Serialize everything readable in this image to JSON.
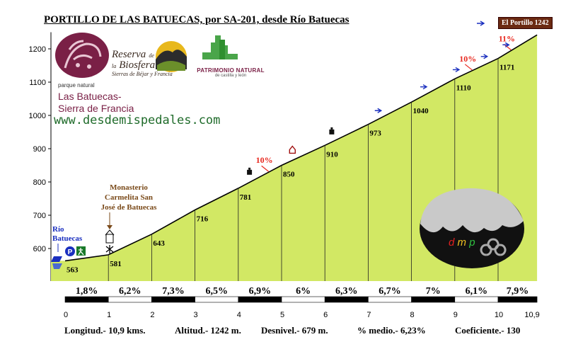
{
  "title": "PORTILLO DE LAS BATUECAS, por SA-201, desde Río Batuecas",
  "logos": {
    "park_small": "parque natural",
    "park_line1": "Las Batuecas-",
    "park_line2": "Sierra de Francia",
    "reserva_1": "Reserva",
    "reserva_de": "de",
    "reserva_la": "la",
    "reserva_2": "Biosfera",
    "reserva_sub": "Sierras de Béjar y Francia",
    "patrimonio_1": "PATRIMONIO NATURAL",
    "patrimonio_2": "de castilla y león",
    "website": "www.desdemispedales.com",
    "dmp_d": "d",
    "dmp_m": "m",
    "dmp_p": "p"
  },
  "annotations": {
    "start_place_1": "Río",
    "start_place_2": "Batuecas",
    "monastery_1": "Monasterio",
    "monastery_2": "Carmelita San",
    "monastery_3": "José de Batuecas",
    "summit_box": "El Portillo 1242"
  },
  "stats": {
    "length": "Longitud.- 10,9 kms.",
    "altitude": "Altitud.- 1242 m.",
    "climb": "Desnivel.- 679 m.",
    "avg": "% medio.- 6,23%",
    "coef": "Coeficiente.- 130"
  },
  "colors": {
    "fill": "#d2e864",
    "fill_shadow": "#a9c63a",
    "outline": "#000000",
    "peak_label": "#e8281e",
    "marker_arrow": "#1a2fbf"
  },
  "chart_data": {
    "type": "area",
    "xlabel": "",
    "ylabel": "",
    "xlim": [
      0,
      10.9
    ],
    "ylim": [
      500,
      1250
    ],
    "y_ticks": [
      600,
      700,
      800,
      900,
      1000,
      1100,
      1200
    ],
    "x_ticks": [
      "0",
      "1",
      "2",
      "3",
      "4",
      "5",
      "6",
      "7",
      "8",
      "9",
      "10",
      "10,9"
    ],
    "profile": [
      {
        "km": 0,
        "alt": 563
      },
      {
        "km": 1,
        "alt": 581
      },
      {
        "km": 2,
        "alt": 643
      },
      {
        "km": 3,
        "alt": 716
      },
      {
        "km": 4,
        "alt": 781
      },
      {
        "km": 5,
        "alt": 850
      },
      {
        "km": 6,
        "alt": 910
      },
      {
        "km": 7,
        "alt": 973
      },
      {
        "km": 8,
        "alt": 1040
      },
      {
        "km": 9,
        "alt": 1110
      },
      {
        "km": 10,
        "alt": 1171
      },
      {
        "km": 10.9,
        "alt": 1242
      }
    ],
    "point_labels": [
      "563",
      "581",
      "643",
      "716",
      "781",
      "850",
      "910",
      "973",
      "1040",
      "1110",
      "1171"
    ],
    "segment_grades": [
      "1,8%",
      "6,2%",
      "7,3%",
      "6,5%",
      "6,9%",
      "6%",
      "6,3%",
      "6,7%",
      "7%",
      "6,1%",
      "7,9%"
    ],
    "peak_grades": [
      {
        "km": 4.7,
        "label": "10%"
      },
      {
        "km": 9.4,
        "label": "10%"
      },
      {
        "km": 10.3,
        "label": "11%"
      }
    ]
  }
}
